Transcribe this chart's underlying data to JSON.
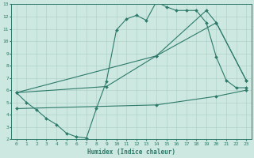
{
  "xlabel": "Humidex (Indice chaleur)",
  "bg_color": "#cce8e0",
  "grid_color": "#aaccC4",
  "line_color": "#2d7a6a",
  "xlim": [
    -0.5,
    23.5
  ],
  "ylim": [
    2,
    13
  ],
  "xticks": [
    0,
    1,
    2,
    3,
    4,
    5,
    6,
    7,
    8,
    9,
    10,
    11,
    12,
    13,
    14,
    15,
    16,
    17,
    18,
    19,
    20,
    21,
    22,
    23
  ],
  "yticks": [
    2,
    3,
    4,
    5,
    6,
    7,
    8,
    9,
    10,
    11,
    12,
    13
  ],
  "line1_x": [
    0,
    1,
    2,
    3,
    4,
    5,
    6,
    7,
    8,
    9,
    10,
    11,
    12,
    13,
    14,
    15,
    16,
    17,
    18,
    19,
    20,
    21,
    22,
    23
  ],
  "line1_y": [
    5.8,
    5.0,
    4.4,
    3.7,
    3.2,
    2.5,
    2.2,
    2.1,
    4.5,
    6.7,
    10.9,
    11.8,
    12.1,
    11.7,
    13.2,
    12.8,
    12.5,
    12.5,
    12.5,
    11.5,
    8.7,
    6.8,
    6.2,
    6.2
  ],
  "line2_x": [
    0,
    14,
    20,
    23
  ],
  "line2_y": [
    5.8,
    8.8,
    11.5,
    6.8
  ],
  "line3_x": [
    0,
    14,
    20,
    23
  ],
  "line3_y": [
    4.5,
    4.8,
    5.5,
    6.0
  ],
  "line4_x": [
    0,
    9,
    14,
    19,
    20,
    23
  ],
  "line4_y": [
    5.8,
    6.3,
    8.8,
    12.5,
    11.5,
    6.8
  ]
}
